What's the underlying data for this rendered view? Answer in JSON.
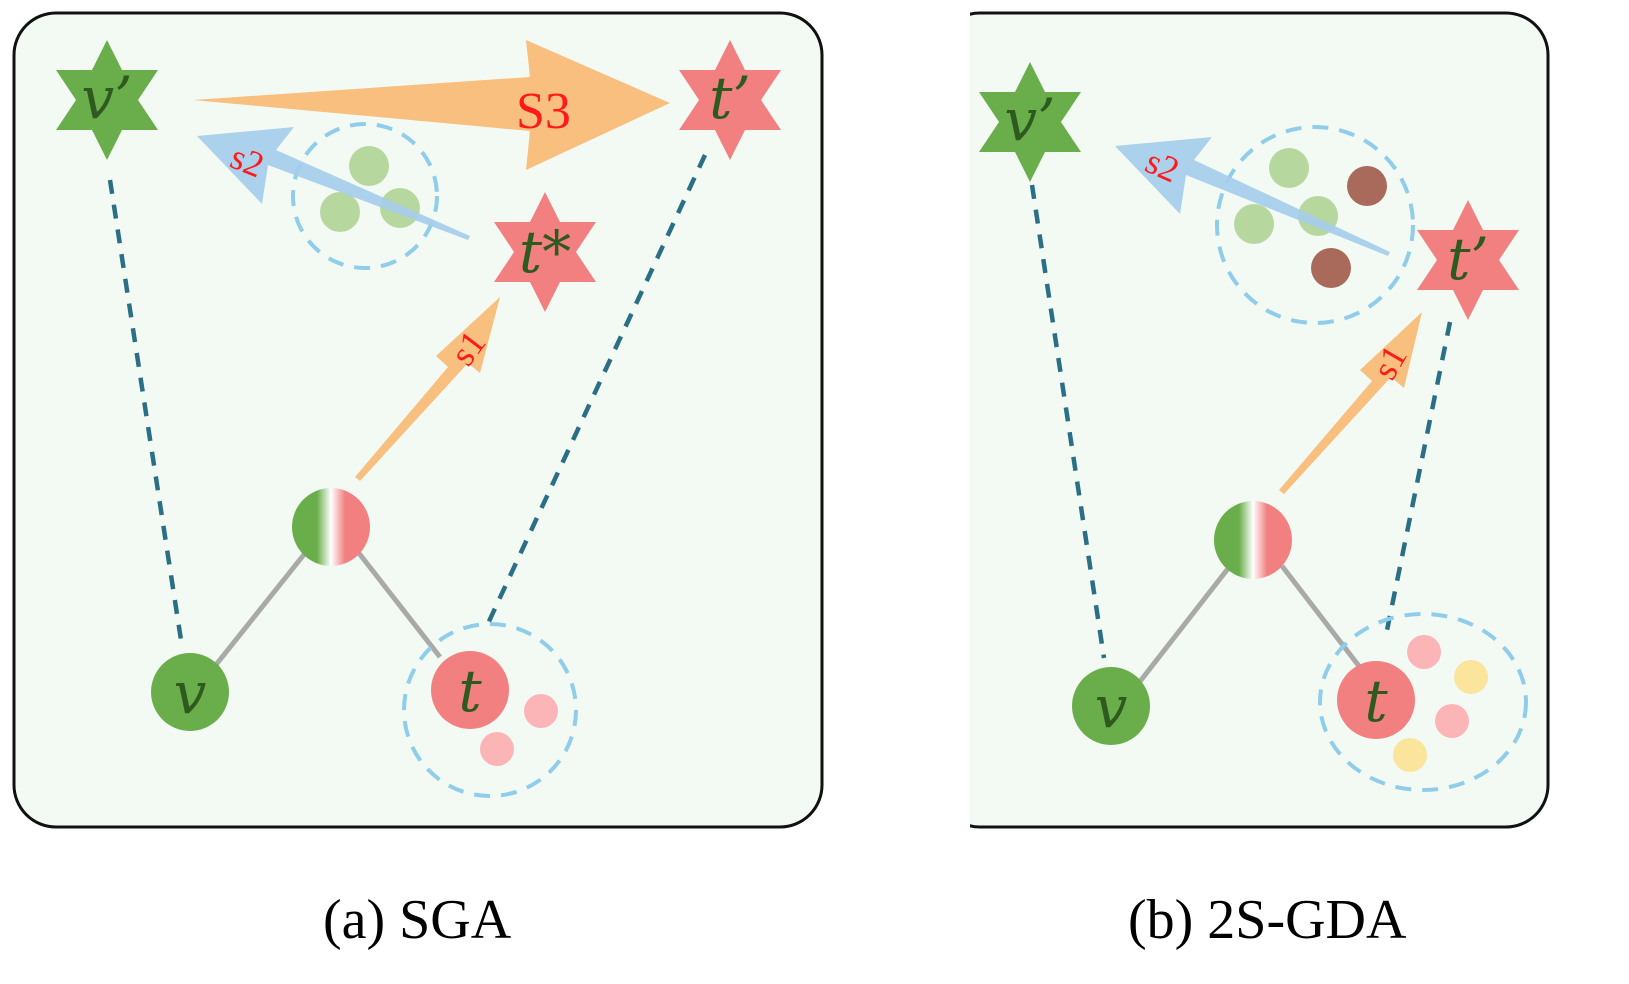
{
  "panel_a": {
    "caption": "(a) SGA",
    "nodes": {
      "v_prime": "v’",
      "t_prime": "t’",
      "t_star": "t*",
      "v": "v",
      "t": "t"
    },
    "arrows": {
      "s1": "s1",
      "s2": "s2",
      "s3": "S3"
    }
  },
  "panel_b": {
    "caption": "(b) 2S-GDA",
    "nodes": {
      "v_prime": "v’",
      "t_prime": "t’",
      "v": "v",
      "t": "t"
    },
    "arrows": {
      "s1": "s1",
      "s2": "s2"
    }
  },
  "colors": {
    "panel_fill": "#f3faf4",
    "green_node": "#6aae4b",
    "red_node": "#f28081",
    "dashed_line": "#2b6f86",
    "dashed_circle": "#8fcdeb",
    "orange_arrow": "#f8bf7e",
    "blue_arrow": "#a6cdea",
    "light_green_dot": "#b6d89f",
    "brown_dot": "#a96a5c",
    "pink_dot": "#fcb5b7",
    "yellow_dot": "#fbe49b"
  }
}
